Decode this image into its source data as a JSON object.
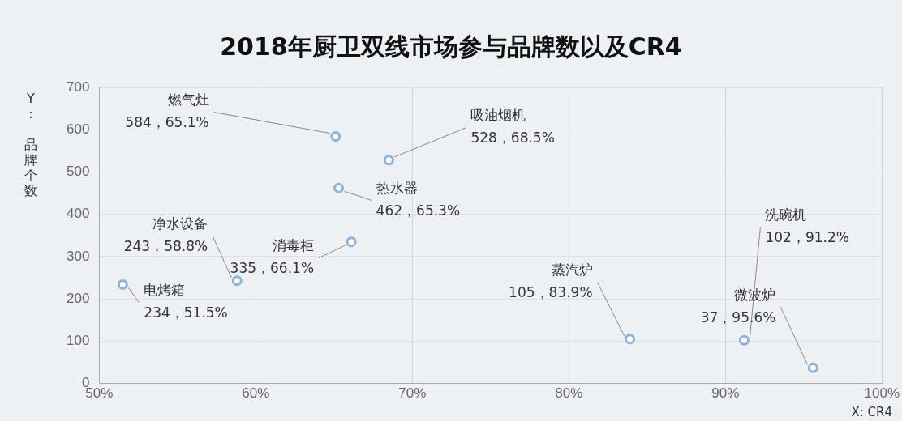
{
  "chart_data": {
    "type": "scatter",
    "title": "2018年厨卫双线市场参与品牌数以及CR4",
    "xlabel": "X: CR4",
    "ylabel": "Y: 品牌个数",
    "series": [
      {
        "color": "#8db4dc",
        "x": [
          65.1,
          68.5,
          65.3,
          58.8,
          51.5,
          66.1,
          91.2,
          83.9,
          95.6
        ],
        "values": [
          584,
          528,
          462,
          243,
          234,
          335,
          102,
          105,
          37
        ],
        "value_labels": [
          "584，65.1%",
          "528，68.5%",
          "462，65.3%",
          "243，58.8%",
          "234，51.5%",
          "335，66.1%",
          "102，91.2%",
          "105，83.9%",
          "37，95.6%"
        ]
      }
    ],
    "annotations": [
      {
        "text": "燃气灶",
        "x": 65.1,
        "y": 584
      },
      {
        "text": "吸油烟机",
        "x": 68.5,
        "y": 528
      },
      {
        "text": "热水器",
        "x": 65.3,
        "y": 462
      },
      {
        "text": "净水设备",
        "x": 58.8,
        "y": 243
      },
      {
        "text": "电烤箱",
        "x": 51.5,
        "y": 234
      },
      {
        "text": "消毒柜",
        "x": 66.1,
        "y": 335
      },
      {
        "text": "洗碗机",
        "x": 91.2,
        "y": 102
      },
      {
        "text": "蒸汽炉",
        "x": 83.9,
        "y": 105
      },
      {
        "text": "微波炉",
        "x": 95.6,
        "y": 37
      }
    ],
    "xlim": [
      50,
      100
    ],
    "xticks": [
      {
        "value": 50,
        "label": "50%"
      },
      {
        "value": 60,
        "label": "60%"
      },
      {
        "value": 70,
        "label": "70%"
      },
      {
        "value": 80,
        "label": "80%"
      },
      {
        "value": 90,
        "label": "90%"
      },
      {
        "value": 100,
        "label": "100%"
      }
    ],
    "ylim": [
      0,
      700
    ],
    "yticks": [
      0,
      100,
      200,
      300,
      400,
      500,
      600,
      700
    ],
    "grid": true,
    "marker": "circle",
    "legend": false
  }
}
